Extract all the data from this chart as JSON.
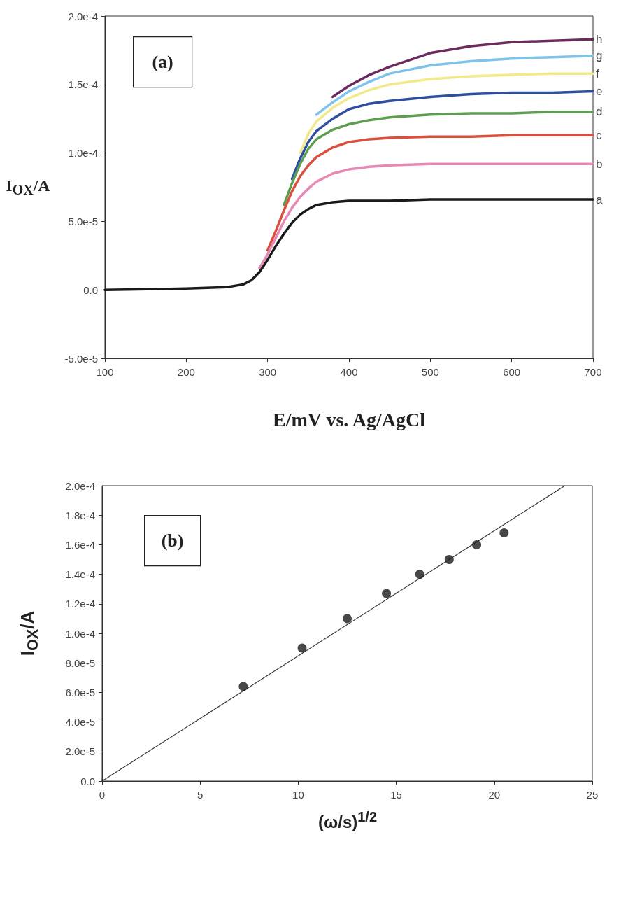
{
  "chart_data": [
    {
      "type": "line",
      "annotations": [
        "(a)"
      ],
      "xlabel": "E/mV vs. Ag/AgCl",
      "ylabel": "I$_{OX}$/A",
      "series": [
        {
          "name": "h",
          "color": "#6b2b5e",
          "x": [
            380,
            400,
            425,
            450,
            500,
            550,
            600,
            650,
            700
          ],
          "values": [
            0.000141,
            0.000149,
            0.000157,
            0.000163,
            0.000173,
            0.000178,
            0.000181,
            0.000182,
            0.000183
          ]
        },
        {
          "name": "g",
          "color": "#7ec3ea",
          "x": [
            360,
            380,
            400,
            425,
            450,
            500,
            550,
            600,
            650,
            700
          ],
          "values": [
            0.000128,
            0.000137,
            0.000145,
            0.000152,
            0.000158,
            0.000164,
            0.000167,
            0.000169,
            0.00017,
            0.000171
          ]
        },
        {
          "name": "f",
          "color": "#f2e98a",
          "x": [
            340,
            350,
            360,
            380,
            400,
            425,
            450,
            500,
            550,
            600,
            650,
            700
          ],
          "values": [
            0.0001,
            0.000114,
            0.000123,
            0.000133,
            0.00014,
            0.000146,
            0.00015,
            0.000154,
            0.000156,
            0.000157,
            0.000158,
            0.000158
          ]
        },
        {
          "name": "e",
          "color": "#2d4f9e",
          "x": [
            330,
            340,
            350,
            360,
            380,
            400,
            425,
            450,
            500,
            550,
            600,
            650,
            700
          ],
          "values": [
            8.1e-05,
            9.6e-05,
            0.000108,
            0.000116,
            0.000125,
            0.000132,
            0.000136,
            0.000138,
            0.000141,
            0.000143,
            0.000144,
            0.000144,
            0.000145
          ]
        },
        {
          "name": "d",
          "color": "#5e9e50",
          "x": [
            320,
            330,
            340,
            350,
            360,
            380,
            400,
            425,
            450,
            500,
            550,
            600,
            650,
            700
          ],
          "values": [
            6.2e-05,
            7.8e-05,
            9.2e-05,
            0.000103,
            0.00011,
            0.000117,
            0.000121,
            0.000124,
            0.000126,
            0.000128,
            0.000129,
            0.000129,
            0.00013,
            0.00013
          ]
        },
        {
          "name": "c",
          "color": "#d9503f",
          "x": [
            300,
            310,
            320,
            330,
            340,
            350,
            360,
            380,
            400,
            425,
            450,
            500,
            550,
            600,
            650,
            700
          ],
          "values": [
            2.9e-05,
            4.3e-05,
            5.8e-05,
            7.2e-05,
            8.3e-05,
            9.1e-05,
            9.7e-05,
            0.000104,
            0.000108,
            0.00011,
            0.000111,
            0.000112,
            0.000112,
            0.000113,
            0.000113,
            0.000113
          ]
        },
        {
          "name": "b",
          "color": "#e889b5",
          "x": [
            290,
            300,
            310,
            320,
            330,
            340,
            350,
            360,
            380,
            400,
            425,
            450,
            500,
            550,
            600,
            650,
            700
          ],
          "values": [
            1.6e-05,
            2.6e-05,
            3.8e-05,
            5e-05,
            6e-05,
            6.8e-05,
            7.4e-05,
            7.9e-05,
            8.5e-05,
            8.8e-05,
            9e-05,
            9.1e-05,
            9.2e-05,
            9.2e-05,
            9.2e-05,
            9.2e-05,
            9.2e-05
          ]
        },
        {
          "name": "a",
          "color": "#1a1a1a",
          "x": [
            100,
            200,
            250,
            270,
            280,
            290,
            300,
            310,
            320,
            330,
            340,
            350,
            360,
            380,
            400,
            425,
            450,
            500,
            550,
            600,
            650,
            700
          ],
          "values": [
            0,
            1e-06,
            2e-06,
            4e-06,
            7e-06,
            1.3e-05,
            2.2e-05,
            3.2e-05,
            4.1e-05,
            4.9e-05,
            5.5e-05,
            5.9e-05,
            6.2e-05,
            6.4e-05,
            6.5e-05,
            6.5e-05,
            6.5e-05,
            6.6e-05,
            6.6e-05,
            6.6e-05,
            6.6e-05,
            6.6e-05
          ]
        }
      ],
      "xlim": [
        100,
        700
      ],
      "xticks": [
        100,
        200,
        300,
        400,
        500,
        600,
        700
      ],
      "ylim": [
        -5e-05,
        0.0002
      ],
      "yticks": [
        {
          "value": -5e-05,
          "label": "-5.0e-5"
        },
        {
          "value": 0,
          "label": "0.0"
        },
        {
          "value": 5e-05,
          "label": "5.0e-5"
        },
        {
          "value": 0.0001,
          "label": "1.0e-4"
        },
        {
          "value": 0.00015,
          "label": "1.5e-4"
        },
        {
          "value": 0.0002,
          "label": "2.0e-4"
        }
      ],
      "grid": false,
      "legend": false,
      "marker": "none",
      "line_style": "solid"
    },
    {
      "type": "scatter",
      "annotations": [
        "(b)"
      ],
      "xlabel": "(ω/s)$^{1/2}$",
      "ylabel": "I$_{OX}$/A",
      "series": [
        {
          "type": "scatter",
          "color": "#1a1a1a",
          "marker": "circle",
          "x": [
            7.2,
            10.2,
            12.5,
            14.5,
            16.2,
            17.7,
            19.1,
            20.5
          ],
          "values": [
            6.4e-05,
            9e-05,
            0.00011,
            0.000127,
            0.00014,
            0.00015,
            0.00016,
            0.000168
          ]
        },
        {
          "type": "line",
          "color": "#333333",
          "marker": "none",
          "x": [
            0,
            23.6
          ],
          "values": [
            0,
            0.0002
          ]
        }
      ],
      "xlim": [
        0,
        25
      ],
      "xticks": [
        0,
        5,
        10,
        15,
        20,
        25
      ],
      "ylim": [
        0,
        0.0002
      ],
      "yticks": [
        {
          "value": 0,
          "label": "0.0"
        },
        {
          "value": 2e-05,
          "label": "2.0e-5"
        },
        {
          "value": 4e-05,
          "label": "4.0e-5"
        },
        {
          "value": 6e-05,
          "label": "6.0e-5"
        },
        {
          "value": 8e-05,
          "label": "8.0e-5"
        },
        {
          "value": 0.0001,
          "label": "1.0e-4"
        },
        {
          "value": 0.00012,
          "label": "1.2e-4"
        },
        {
          "value": 0.00014,
          "label": "1.4e-4"
        },
        {
          "value": 0.00016,
          "label": "1.6e-4"
        },
        {
          "value": 0.00018,
          "label": "1.8e-4"
        },
        {
          "value": 0.0002,
          "label": "2.0e-4"
        }
      ],
      "grid": false,
      "legend": false
    }
  ]
}
